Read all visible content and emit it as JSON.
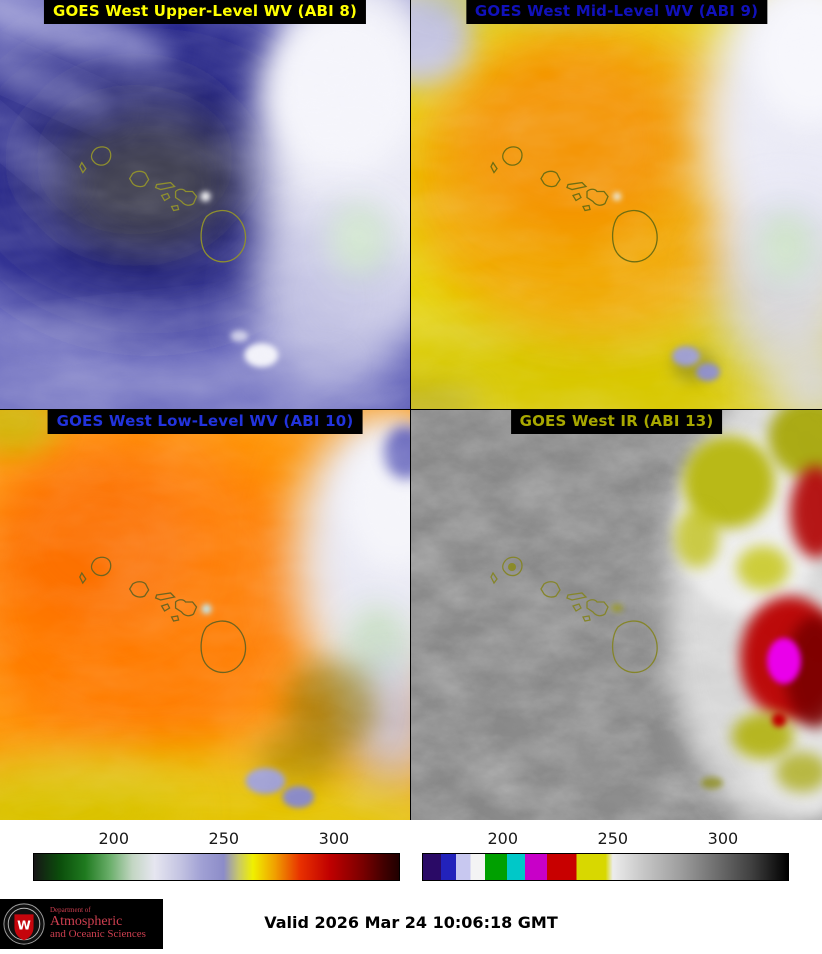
{
  "panels": [
    {
      "title": "GOES West Upper-Level WV (ABI 8)",
      "title_color": "#ffff00"
    },
    {
      "title": "GOES West Mid-Level WV (ABI 9)",
      "title_color": "#1111bb"
    },
    {
      "title": "GOES West Low-Level WV (ABI 10)",
      "title_color": "#2233dd"
    },
    {
      "title": "GOES West IR (ABI 13)",
      "title_color": "#a8a800"
    }
  ],
  "colorbars": {
    "left": {
      "name": "wv-brightness-temperature-scale",
      "ticks": [
        {
          "label": "200",
          "pos": 22
        },
        {
          "label": "250",
          "pos": 52
        },
        {
          "label": "300",
          "pos": 82
        }
      ],
      "gradient": "#161616 0%, #0b4d0b 7%, #1f7a1f 14%, #6db06d 21%, #c3d6c3 27%, #e6e6f0 33%, #c4c4e2 40%, #a0a0d4 46%, #8c8cc8 52%, #c8c86a 56%, #f0f000 60%, #f0a000 66%, #e83000 73%, #c00000 81%, #7a0000 90%, #400000 96%, #200000 100%"
    },
    "right": {
      "name": "ir-brightness-temperature-scale",
      "ticks": [
        {
          "label": "200",
          "pos": 22
        },
        {
          "label": "250",
          "pos": 52
        },
        {
          "label": "300",
          "pos": 82
        }
      ],
      "gradient": "#2a0a66 0%, #2a0a66 5%, #2222bb 5%, #2222bb 9%, #c8c8f0 9%, #c8c8f0 13%, #f4f4f4 13%, #f4f4f4 17%, #00a000 17%, #00a000 23%, #00c8c8 23%, #00c8c8 28%, #c800c8 28%, #c800c8 34%, #c80000 34%, #c80000 42%, #d8d800 42%, #d8d800 50%, #ececec 52%, #c8c8c8 60%, #a0a0a0 70%, #707070 80%, #404040 90%, #000000 100%"
    }
  },
  "footer": {
    "valid_time": "Valid 2026 Mar 24 10:06:18 GMT",
    "logo": {
      "crest_letter": "W",
      "line1": "Department of",
      "line2": "Atmospheric",
      "line3": "and Oceanic Sciences"
    }
  }
}
